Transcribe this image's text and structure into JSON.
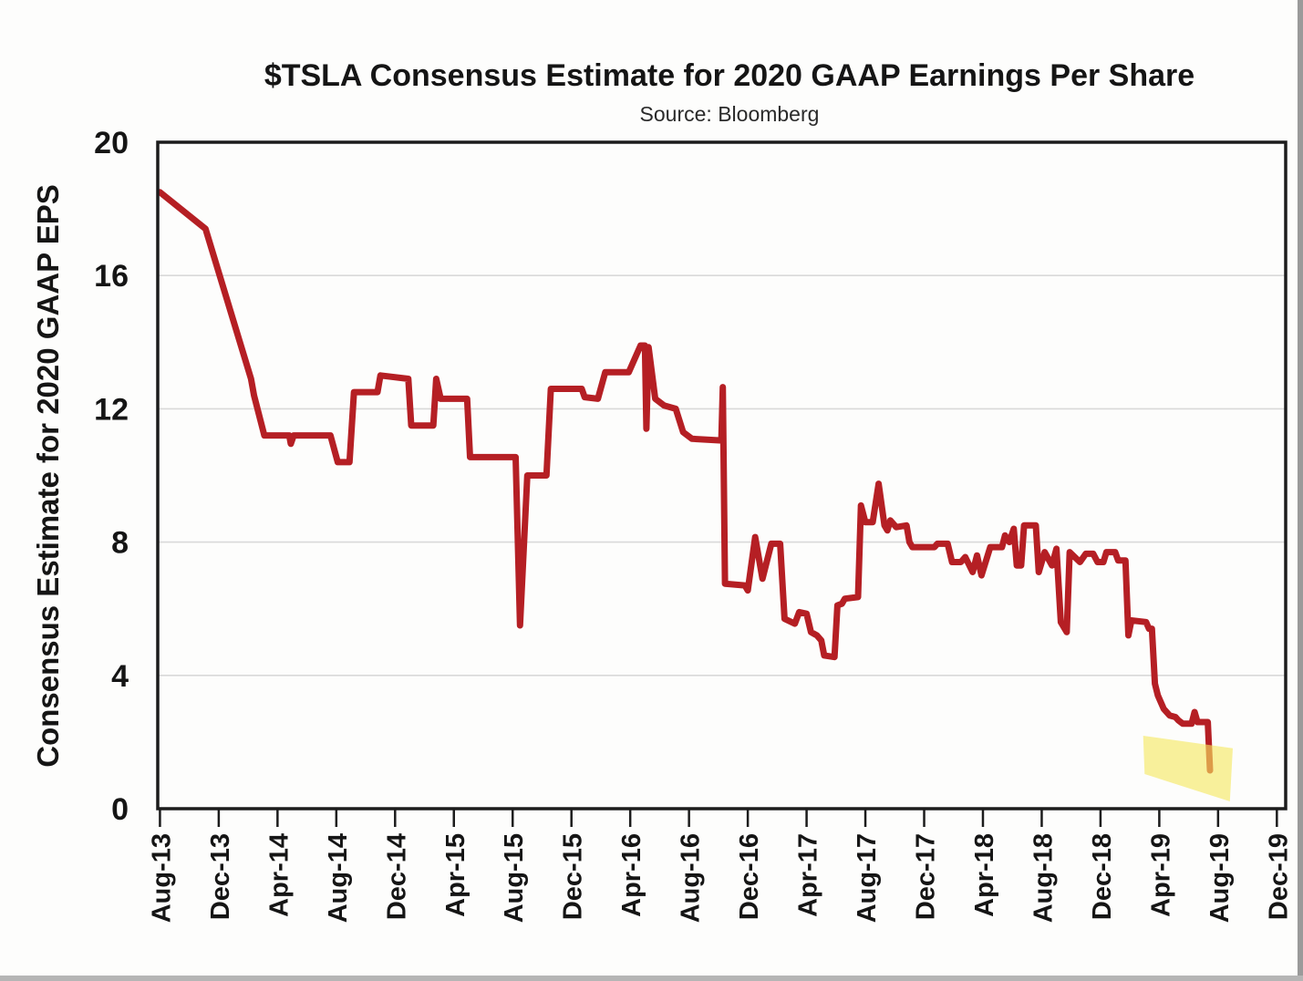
{
  "chart_data": {
    "type": "line",
    "title": "$TSLA Consensus Estimate for 2020 GAAP Earnings Per Share",
    "subtitle": "Source: Bloomberg",
    "x_axis": {
      "unit": "months since Aug-2013",
      "tick_labels": [
        "Aug-13",
        "Dec-13",
        "Apr-14",
        "Aug-14",
        "Dec-14",
        "Apr-15",
        "Aug-15",
        "Dec-15",
        "Apr-16",
        "Aug-16",
        "Dec-16",
        "Apr-17",
        "Aug-17",
        "Dec-17",
        "Apr-18",
        "Aug-18",
        "Dec-18",
        "Apr-19",
        "Aug-19",
        "Dec-19"
      ],
      "tick_month_offsets": [
        0,
        4,
        8,
        12,
        16,
        20,
        24,
        28,
        32,
        36,
        40,
        44,
        48,
        52,
        56,
        60,
        64,
        68,
        72,
        76
      ],
      "range_months": [
        -0.15,
        76.6
      ]
    },
    "y_axis": {
      "title": "Consensus Estimate for 2020 GAAP EPS",
      "tick_labels": [
        "0",
        "4",
        "8",
        "12",
        "16",
        "20"
      ],
      "ticks": [
        0,
        4,
        8,
        12,
        16,
        20
      ],
      "range": [
        0,
        20
      ],
      "gridlines_at": [
        4,
        8,
        12,
        16
      ],
      "gridline_color": "#d9d9d9"
    },
    "series": [
      {
        "name": "TSLA 2020 GAAP EPS consensus estimate",
        "color": "#b51f24",
        "line_width": 7,
        "points": [
          [
            0,
            18.5
          ],
          [
            3.1,
            17.4
          ],
          [
            6.2,
            12.9
          ],
          [
            6.4,
            12.4
          ],
          [
            7.1,
            11.2
          ],
          [
            8.8,
            11.2
          ],
          [
            8.9,
            10.95
          ],
          [
            9.1,
            11.2
          ],
          [
            11.6,
            11.2
          ],
          [
            12.1,
            10.4
          ],
          [
            12.9,
            10.4
          ],
          [
            13.2,
            12.5
          ],
          [
            14.8,
            12.5
          ],
          [
            15.0,
            13.0
          ],
          [
            16.9,
            12.9
          ],
          [
            17.1,
            11.5
          ],
          [
            18.6,
            11.5
          ],
          [
            18.8,
            12.9
          ],
          [
            19.1,
            12.3
          ],
          [
            20.9,
            12.3
          ],
          [
            21.1,
            10.55
          ],
          [
            24.2,
            10.55
          ],
          [
            24.5,
            5.5
          ],
          [
            25.0,
            10.0
          ],
          [
            26.3,
            10.0
          ],
          [
            26.6,
            12.6
          ],
          [
            28.7,
            12.6
          ],
          [
            28.9,
            12.35
          ],
          [
            29.8,
            12.3
          ],
          [
            30.3,
            13.1
          ],
          [
            31.9,
            13.1
          ],
          [
            32.7,
            13.9
          ],
          [
            33.0,
            13.9
          ],
          [
            33.1,
            11.4
          ],
          [
            33.25,
            13.85
          ],
          [
            33.7,
            12.3
          ],
          [
            34.3,
            12.1
          ],
          [
            35.1,
            12.0
          ],
          [
            35.6,
            11.3
          ],
          [
            36.2,
            11.1
          ],
          [
            38.2,
            11.05
          ],
          [
            38.3,
            12.65
          ],
          [
            38.45,
            6.75
          ],
          [
            39.8,
            6.7
          ],
          [
            40.0,
            6.55
          ],
          [
            40.5,
            8.15
          ],
          [
            41.0,
            6.9
          ],
          [
            41.6,
            7.95
          ],
          [
            42.2,
            7.95
          ],
          [
            42.5,
            5.7
          ],
          [
            43.2,
            5.55
          ],
          [
            43.5,
            5.9
          ],
          [
            44.0,
            5.85
          ],
          [
            44.3,
            5.3
          ],
          [
            44.7,
            5.2
          ],
          [
            45.0,
            5.05
          ],
          [
            45.2,
            4.6
          ],
          [
            45.9,
            4.55
          ],
          [
            46.1,
            6.1
          ],
          [
            46.4,
            6.15
          ],
          [
            46.6,
            6.3
          ],
          [
            47.5,
            6.35
          ],
          [
            47.7,
            9.1
          ],
          [
            48.0,
            8.6
          ],
          [
            48.5,
            8.6
          ],
          [
            48.9,
            9.75
          ],
          [
            49.3,
            8.5
          ],
          [
            49.5,
            8.35
          ],
          [
            49.7,
            8.65
          ],
          [
            50.1,
            8.45
          ],
          [
            50.8,
            8.5
          ],
          [
            51.0,
            8.0
          ],
          [
            51.2,
            7.85
          ],
          [
            52.7,
            7.85
          ],
          [
            52.9,
            7.95
          ],
          [
            53.6,
            7.95
          ],
          [
            53.9,
            7.4
          ],
          [
            54.5,
            7.4
          ],
          [
            54.8,
            7.55
          ],
          [
            55.3,
            7.1
          ],
          [
            55.6,
            7.6
          ],
          [
            55.9,
            7.0
          ],
          [
            56.5,
            7.85
          ],
          [
            57.3,
            7.85
          ],
          [
            57.5,
            8.2
          ],
          [
            57.8,
            8.0
          ],
          [
            58.1,
            8.4
          ],
          [
            58.3,
            7.3
          ],
          [
            58.6,
            7.3
          ],
          [
            58.8,
            8.5
          ],
          [
            59.6,
            8.5
          ],
          [
            59.8,
            7.1
          ],
          [
            60.2,
            7.7
          ],
          [
            60.7,
            7.3
          ],
          [
            61.0,
            7.8
          ],
          [
            61.3,
            5.6
          ],
          [
            61.7,
            5.3
          ],
          [
            61.9,
            7.7
          ],
          [
            62.6,
            7.4
          ],
          [
            63.0,
            7.65
          ],
          [
            63.5,
            7.65
          ],
          [
            63.8,
            7.4
          ],
          [
            64.2,
            7.4
          ],
          [
            64.4,
            7.7
          ],
          [
            65.0,
            7.7
          ],
          [
            65.2,
            7.45
          ],
          [
            65.7,
            7.45
          ],
          [
            65.9,
            5.2
          ],
          [
            66.1,
            5.65
          ],
          [
            67.1,
            5.6
          ],
          [
            67.3,
            5.4
          ],
          [
            67.5,
            5.4
          ],
          [
            67.7,
            3.75
          ],
          [
            67.9,
            3.4
          ],
          [
            68.3,
            3.0
          ],
          [
            68.7,
            2.8
          ],
          [
            69.1,
            2.75
          ],
          [
            69.3,
            2.65
          ],
          [
            69.6,
            2.55
          ],
          [
            70.2,
            2.55
          ],
          [
            70.4,
            2.9
          ],
          [
            70.6,
            2.6
          ],
          [
            71.3,
            2.6
          ],
          [
            71.45,
            1.15
          ]
        ]
      }
    ],
    "highlight_region": {
      "shape": "quadrilateral",
      "fill": "rgba(246,233,95,0.62)",
      "points_month_value": [
        [
          66.9,
          2.19
        ],
        [
          73.0,
          1.81
        ],
        [
          72.8,
          0.22
        ],
        [
          67.0,
          1.04
        ]
      ]
    },
    "frame_color": "#1c1c1c",
    "legend": "none",
    "grid": "horizontal-only"
  }
}
